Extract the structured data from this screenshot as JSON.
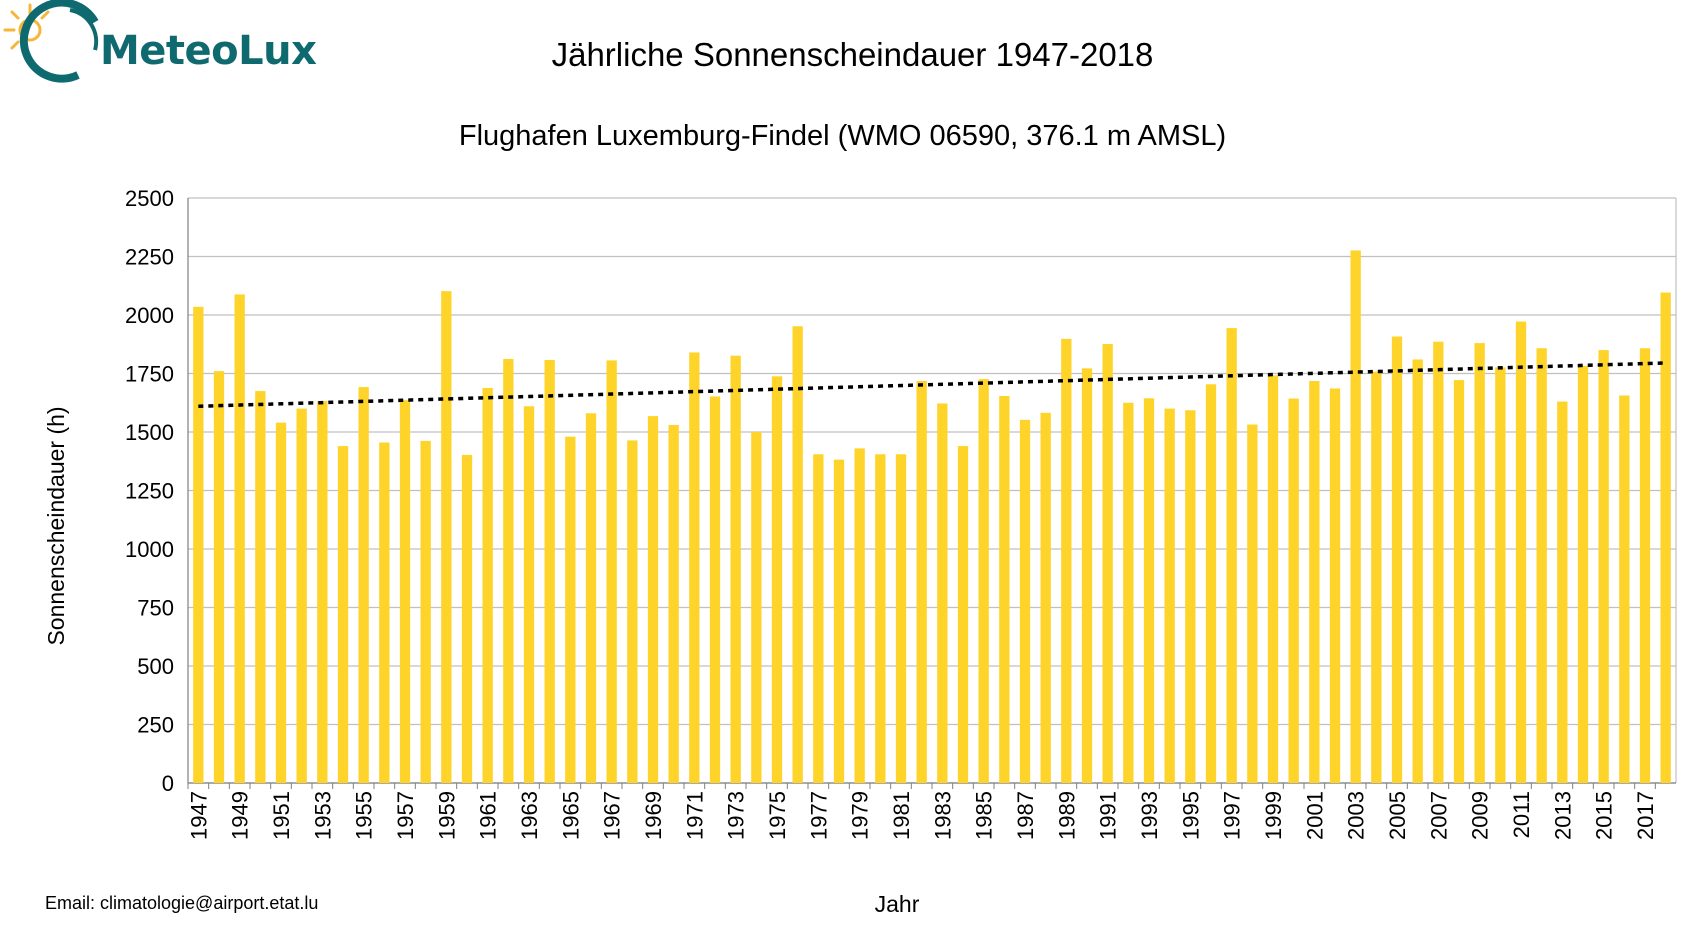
{
  "header": {
    "logo_text": "MeteoLux"
  },
  "footer": {
    "email": "Email: climatologie@airport.etat.lu"
  },
  "colors": {
    "bar": "#ffd42a",
    "trend": "#000000",
    "grid": "#c0c0c0",
    "logo": "#0f6a70",
    "sun": "#f6b63a"
  },
  "chart_data": {
    "type": "bar",
    "title": "Jährliche Sonnenscheindauer 1947-2018",
    "subtitle": "Flughafen Luxemburg-Findel (WMO 06590, 376.1 m AMSL)",
    "xlabel": "Jahr",
    "ylabel": "Sonnenscheindauer (h)",
    "ylim": [
      0,
      2500
    ],
    "yticks": [
      0,
      250,
      500,
      750,
      1000,
      1250,
      1500,
      1750,
      2000,
      2250,
      2500
    ],
    "grid": true,
    "categories": [
      1947,
      1948,
      1949,
      1950,
      1951,
      1952,
      1953,
      1954,
      1955,
      1956,
      1957,
      1958,
      1959,
      1960,
      1961,
      1962,
      1963,
      1964,
      1965,
      1966,
      1967,
      1968,
      1969,
      1970,
      1971,
      1972,
      1973,
      1974,
      1975,
      1976,
      1977,
      1978,
      1979,
      1980,
      1981,
      1982,
      1983,
      1984,
      1985,
      1986,
      1987,
      1988,
      1989,
      1990,
      1991,
      1992,
      1993,
      1994,
      1995,
      1996,
      1997,
      1998,
      1999,
      2000,
      2001,
      2002,
      2003,
      2004,
      2005,
      2006,
      2007,
      2008,
      2009,
      2010,
      2011,
      2012,
      2013,
      2014,
      2015,
      2016,
      2017,
      2018
    ],
    "xtick_labels": [
      "1947",
      "1949",
      "1951",
      "1953",
      "1955",
      "1957",
      "1959",
      "1961",
      "1963",
      "1965",
      "1967",
      "1969",
      "1971",
      "1973",
      "1975",
      "1977",
      "1979",
      "1981",
      "1983",
      "1985",
      "1987",
      "1989",
      "1991",
      "1993",
      "1995",
      "1997",
      "1999",
      "2001",
      "2003",
      "2005",
      "2007",
      "2009",
      "2011",
      "2013",
      "2015",
      "2017"
    ],
    "values": [
      2035,
      1760,
      2088,
      1675,
      1540,
      1600,
      1632,
      1440,
      1692,
      1455,
      1636,
      1462,
      2102,
      1402,
      1688,
      1812,
      1610,
      1808,
      1480,
      1580,
      1806,
      1464,
      1568,
      1530,
      1840,
      1652,
      1826,
      1500,
      1738,
      1952,
      1405,
      1382,
      1430,
      1405,
      1405,
      1718,
      1622,
      1440,
      1726,
      1654,
      1552,
      1582,
      1898,
      1772,
      1876,
      1625,
      1644,
      1600,
      1593,
      1704,
      1944,
      1532,
      1742,
      1643,
      1718,
      1686,
      2276,
      1758,
      1908,
      1810,
      1886,
      1722,
      1880,
      1776,
      1972,
      1858,
      1630,
      1782,
      1850,
      1656,
      1858,
      2096
    ],
    "trend": {
      "type": "linear",
      "start": [
        1947,
        1610
      ],
      "end": [
        2018,
        1795
      ]
    }
  }
}
